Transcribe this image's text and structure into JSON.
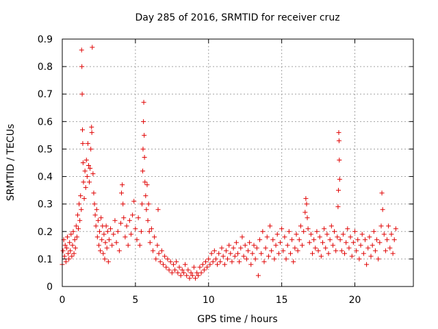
{
  "chart_data": {
    "type": "scatter",
    "title": "Day 285 of 2016, SRMTID for receiver cruz",
    "xlabel": "GPS time / hours",
    "ylabel": "SRMTID / TECUs",
    "xlim": [
      0,
      24
    ],
    "ylim": [
      0,
      0.9
    ],
    "x_ticks": [
      0,
      5,
      10,
      15,
      20
    ],
    "y_ticks": [
      0,
      0.1,
      0.2,
      0.3,
      0.4,
      0.5,
      0.6,
      0.7,
      0.8,
      0.9
    ],
    "x_tick_labels": [
      "0",
      "5",
      "10",
      "15",
      "20"
    ],
    "y_tick_labels": [
      "0",
      "0.1",
      "0.2",
      "0.3",
      "0.4",
      "0.5",
      "0.6",
      "0.7",
      "0.8",
      "0.9"
    ],
    "grid": true,
    "marker": "+",
    "color": "#e00000",
    "series": [
      {
        "name": "SRMTID",
        "points": [
          [
            0.0,
            0.08
          ],
          [
            0.05,
            0.13
          ],
          [
            0.1,
            0.17
          ],
          [
            0.15,
            0.11
          ],
          [
            0.2,
            0.15
          ],
          [
            0.25,
            0.09
          ],
          [
            0.3,
            0.14
          ],
          [
            0.35,
            0.18
          ],
          [
            0.4,
            0.12
          ],
          [
            0.45,
            0.1
          ],
          [
            0.5,
            0.16
          ],
          [
            0.55,
            0.13
          ],
          [
            0.6,
            0.19
          ],
          [
            0.65,
            0.11
          ],
          [
            0.7,
            0.15
          ],
          [
            0.75,
            0.2
          ],
          [
            0.8,
            0.12
          ],
          [
            0.85,
            0.17
          ],
          [
            0.9,
            0.14
          ],
          [
            0.95,
            0.22
          ],
          [
            1.0,
            0.18
          ],
          [
            1.05,
            0.26
          ],
          [
            1.1,
            0.21
          ],
          [
            1.15,
            0.3
          ],
          [
            1.2,
            0.24
          ],
          [
            1.25,
            0.33
          ],
          [
            1.3,
            0.28
          ],
          [
            1.32,
            0.86
          ],
          [
            1.34,
            0.8
          ],
          [
            1.36,
            0.7
          ],
          [
            1.38,
            0.57
          ],
          [
            1.4,
            0.52
          ],
          [
            1.42,
            0.45
          ],
          [
            1.45,
            0.38
          ],
          [
            1.5,
            0.32
          ],
          [
            1.55,
            0.42
          ],
          [
            1.6,
            0.36
          ],
          [
            1.65,
            0.46
          ],
          [
            1.7,
            0.4
          ],
          [
            1.75,
            0.52
          ],
          [
            1.8,
            0.44
          ],
          [
            1.85,
            0.38
          ],
          [
            1.9,
            0.43
          ],
          [
            1.95,
            0.5
          ],
          [
            2.0,
            0.58
          ],
          [
            2.02,
            0.56
          ],
          [
            2.05,
            0.87
          ],
          [
            2.1,
            0.41
          ],
          [
            2.15,
            0.34
          ],
          [
            2.2,
            0.3
          ],
          [
            2.25,
            0.26
          ],
          [
            2.3,
            0.22
          ],
          [
            2.35,
            0.28
          ],
          [
            2.4,
            0.18
          ],
          [
            2.45,
            0.24
          ],
          [
            2.5,
            0.15
          ],
          [
            2.55,
            0.2
          ],
          [
            2.6,
            0.13
          ],
          [
            2.65,
            0.25
          ],
          [
            2.7,
            0.17
          ],
          [
            2.75,
            0.22
          ],
          [
            2.8,
            0.12
          ],
          [
            2.85,
            0.19
          ],
          [
            2.9,
            0.1
          ],
          [
            2.95,
            0.16
          ],
          [
            3.0,
            0.22
          ],
          [
            3.05,
            0.14
          ],
          [
            3.1,
            0.2
          ],
          [
            3.15,
            0.09
          ],
          [
            3.2,
            0.17
          ],
          [
            3.3,
            0.21
          ],
          [
            3.4,
            0.15
          ],
          [
            3.5,
            0.19
          ],
          [
            3.6,
            0.24
          ],
          [
            3.7,
            0.16
          ],
          [
            3.8,
            0.2
          ],
          [
            3.9,
            0.13
          ],
          [
            4.0,
            0.23
          ],
          [
            4.05,
            0.34
          ],
          [
            4.1,
            0.37
          ],
          [
            4.15,
            0.3
          ],
          [
            4.2,
            0.25
          ],
          [
            4.3,
            0.18
          ],
          [
            4.4,
            0.22
          ],
          [
            4.5,
            0.15
          ],
          [
            4.6,
            0.24
          ],
          [
            4.7,
            0.19
          ],
          [
            4.8,
            0.26
          ],
          [
            4.9,
            0.31
          ],
          [
            5.0,
            0.21
          ],
          [
            5.1,
            0.17
          ],
          [
            5.2,
            0.25
          ],
          [
            5.3,
            0.15
          ],
          [
            5.4,
            0.2
          ],
          [
            5.45,
            0.3
          ],
          [
            5.5,
            0.42
          ],
          [
            5.52,
            0.5
          ],
          [
            5.55,
            0.6
          ],
          [
            5.57,
            0.67
          ],
          [
            5.6,
            0.55
          ],
          [
            5.62,
            0.47
          ],
          [
            5.65,
            0.38
          ],
          [
            5.7,
            0.33
          ],
          [
            5.75,
            0.28
          ],
          [
            5.8,
            0.37
          ],
          [
            5.85,
            0.24
          ],
          [
            5.9,
            0.3
          ],
          [
            5.95,
            0.2
          ],
          [
            6.0,
            0.16
          ],
          [
            6.1,
            0.21
          ],
          [
            6.2,
            0.13
          ],
          [
            6.3,
            0.18
          ],
          [
            6.4,
            0.1
          ],
          [
            6.5,
            0.15
          ],
          [
            6.55,
            0.28
          ],
          [
            6.6,
            0.12
          ],
          [
            6.7,
            0.09
          ],
          [
            6.8,
            0.13
          ],
          [
            6.9,
            0.08
          ],
          [
            7.0,
            0.11
          ],
          [
            7.1,
            0.07
          ],
          [
            7.2,
            0.1
          ],
          [
            7.3,
            0.06
          ],
          [
            7.4,
            0.09
          ],
          [
            7.5,
            0.05
          ],
          [
            7.6,
            0.08
          ],
          [
            7.7,
            0.06
          ],
          [
            7.8,
            0.09
          ],
          [
            7.9,
            0.05
          ],
          [
            8.0,
            0.07
          ],
          [
            8.1,
            0.04
          ],
          [
            8.2,
            0.06
          ],
          [
            8.3,
            0.05
          ],
          [
            8.4,
            0.08
          ],
          [
            8.5,
            0.04
          ],
          [
            8.6,
            0.06
          ],
          [
            8.7,
            0.03
          ],
          [
            8.8,
            0.05
          ],
          [
            8.9,
            0.04
          ],
          [
            9.0,
            0.07
          ],
          [
            9.1,
            0.03
          ],
          [
            9.2,
            0.05
          ],
          [
            9.3,
            0.04
          ],
          [
            9.4,
            0.07
          ],
          [
            9.5,
            0.05
          ],
          [
            9.6,
            0.08
          ],
          [
            9.7,
            0.06
          ],
          [
            9.8,
            0.09
          ],
          [
            9.9,
            0.07
          ],
          [
            10.0,
            0.1
          ],
          [
            10.1,
            0.08
          ],
          [
            10.2,
            0.12
          ],
          [
            10.3,
            0.09
          ],
          [
            10.4,
            0.13
          ],
          [
            10.5,
            0.1
          ],
          [
            10.6,
            0.08
          ],
          [
            10.7,
            0.12
          ],
          [
            10.8,
            0.09
          ],
          [
            10.9,
            0.14
          ],
          [
            11.0,
            0.11
          ],
          [
            11.1,
            0.08
          ],
          [
            11.2,
            0.13
          ],
          [
            11.3,
            0.1
          ],
          [
            11.4,
            0.15
          ],
          [
            11.5,
            0.12
          ],
          [
            11.6,
            0.09
          ],
          [
            11.7,
            0.14
          ],
          [
            11.8,
            0.11
          ],
          [
            11.9,
            0.16
          ],
          [
            12.0,
            0.12
          ],
          [
            12.1,
            0.09
          ],
          [
            12.2,
            0.14
          ],
          [
            12.3,
            0.18
          ],
          [
            12.4,
            0.11
          ],
          [
            12.5,
            0.15
          ],
          [
            12.6,
            0.1
          ],
          [
            12.7,
            0.13
          ],
          [
            12.8,
            0.16
          ],
          [
            12.9,
            0.08
          ],
          [
            13.0,
            0.12
          ],
          [
            13.1,
            0.15
          ],
          [
            13.2,
            0.1
          ],
          [
            13.3,
            0.14
          ],
          [
            13.4,
            0.04
          ],
          [
            13.5,
            0.17
          ],
          [
            13.6,
            0.12
          ],
          [
            13.7,
            0.2
          ],
          [
            13.8,
            0.09
          ],
          [
            13.9,
            0.14
          ],
          [
            14.0,
            0.18
          ],
          [
            14.1,
            0.11
          ],
          [
            14.2,
            0.22
          ],
          [
            14.3,
            0.13
          ],
          [
            14.4,
            0.17
          ],
          [
            14.5,
            0.1
          ],
          [
            14.6,
            0.15
          ],
          [
            14.7,
            0.19
          ],
          [
            14.8,
            0.12
          ],
          [
            14.9,
            0.16
          ],
          [
            15.0,
            0.21
          ],
          [
            15.1,
            0.13
          ],
          [
            15.2,
            0.18
          ],
          [
            15.3,
            0.1
          ],
          [
            15.4,
            0.15
          ],
          [
            15.5,
            0.2
          ],
          [
            15.6,
            0.12
          ],
          [
            15.7,
            0.17
          ],
          [
            15.8,
            0.09
          ],
          [
            15.9,
            0.14
          ],
          [
            16.0,
            0.19
          ],
          [
            16.1,
            0.13
          ],
          [
            16.2,
            0.17
          ],
          [
            16.3,
            0.22
          ],
          [
            16.4,
            0.15
          ],
          [
            16.5,
            0.2
          ],
          [
            16.6,
            0.27
          ],
          [
            16.65,
            0.32
          ],
          [
            16.7,
            0.3
          ],
          [
            16.75,
            0.25
          ],
          [
            16.8,
            0.21
          ],
          [
            16.9,
            0.16
          ],
          [
            17.0,
            0.19
          ],
          [
            17.1,
            0.12
          ],
          [
            17.2,
            0.17
          ],
          [
            17.3,
            0.14
          ],
          [
            17.4,
            0.2
          ],
          [
            17.5,
            0.13
          ],
          [
            17.6,
            0.18
          ],
          [
            17.7,
            0.11
          ],
          [
            17.8,
            0.16
          ],
          [
            17.9,
            0.21
          ],
          [
            18.0,
            0.14
          ],
          [
            18.1,
            0.19
          ],
          [
            18.2,
            0.12
          ],
          [
            18.3,
            0.17
          ],
          [
            18.4,
            0.22
          ],
          [
            18.5,
            0.15
          ],
          [
            18.6,
            0.2
          ],
          [
            18.7,
            0.13
          ],
          [
            18.8,
            0.18
          ],
          [
            18.85,
            0.29
          ],
          [
            18.88,
            0.35
          ],
          [
            18.9,
            0.56
          ],
          [
            18.92,
            0.53
          ],
          [
            18.94,
            0.46
          ],
          [
            18.96,
            0.39
          ],
          [
            19.0,
            0.17
          ],
          [
            19.1,
            0.13
          ],
          [
            19.2,
            0.19
          ],
          [
            19.3,
            0.12
          ],
          [
            19.4,
            0.16
          ],
          [
            19.5,
            0.21
          ],
          [
            19.6,
            0.14
          ],
          [
            19.7,
            0.18
          ],
          [
            19.8,
            0.11
          ],
          [
            19.9,
            0.16
          ],
          [
            20.0,
            0.2
          ],
          [
            20.1,
            0.13
          ],
          [
            20.2,
            0.17
          ],
          [
            20.3,
            0.1
          ],
          [
            20.4,
            0.15
          ],
          [
            20.5,
            0.19
          ],
          [
            20.6,
            0.12
          ],
          [
            20.7,
            0.17
          ],
          [
            20.8,
            0.08
          ],
          [
            20.9,
            0.14
          ],
          [
            21.0,
            0.18
          ],
          [
            21.1,
            0.11
          ],
          [
            21.2,
            0.15
          ],
          [
            21.3,
            0.2
          ],
          [
            21.4,
            0.13
          ],
          [
            21.5,
            0.17
          ],
          [
            21.6,
            0.1
          ],
          [
            21.7,
            0.16
          ],
          [
            21.8,
            0.22
          ],
          [
            21.85,
            0.34
          ],
          [
            21.9,
            0.28
          ],
          [
            22.0,
            0.19
          ],
          [
            22.1,
            0.13
          ],
          [
            22.2,
            0.17
          ],
          [
            22.3,
            0.22
          ],
          [
            22.4,
            0.14
          ],
          [
            22.5,
            0.19
          ],
          [
            22.6,
            0.12
          ],
          [
            22.7,
            0.17
          ],
          [
            22.8,
            0.21
          ]
        ]
      }
    ]
  }
}
